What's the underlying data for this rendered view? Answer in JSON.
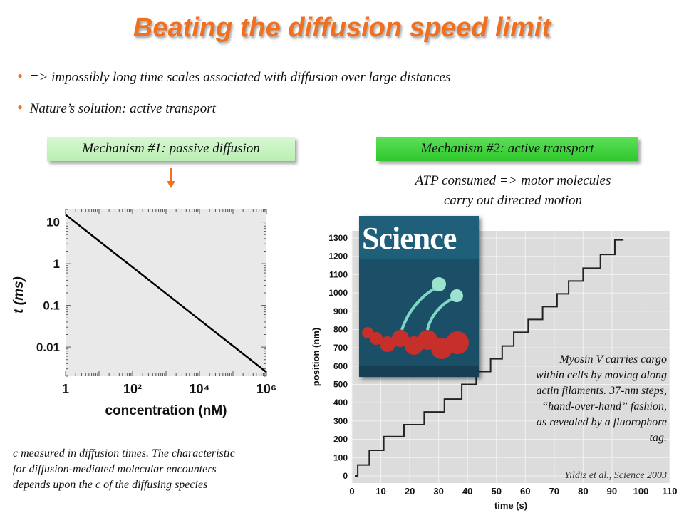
{
  "slide": {
    "title": "Beating the diffusion speed limit",
    "bullets": [
      "=> impossibly long time scales associated with diffusion over large distances",
      "Nature’s solution: active transport"
    ],
    "mechanism1": "Mechanism #1: passive diffusion",
    "mechanism2": "Mechanism #2: active transport",
    "atp_line1": "ATP consumed => motor molecules",
    "atp_line2": "carry out directed motion",
    "caption_lines": [
      "c measured in diffusion times. The characteristic",
      "for diffusion-mediated molecular encounters",
      "depends upon the c of the diffusing species"
    ],
    "myosin_lines": [
      "Myosin V carries cargo",
      "within cells by moving along",
      "actin filaments. 37-nm steps,",
      "“hand-over-hand” fashion,",
      "as revealed by a fluorophore",
      "tag."
    ],
    "reference": "Yildiz et al., Science 2003",
    "cover_title": "Science",
    "accent_color": "#f07020"
  },
  "chart_data": [
    {
      "type": "line",
      "title": "",
      "xlabel": "concentration (nM)",
      "ylabel": "t (ms)",
      "x_scale": "log",
      "y_scale": "log",
      "xlim": [
        1,
        1000000
      ],
      "ylim": [
        0.002,
        20
      ],
      "x_ticks": [
        1,
        100,
        10000,
        1000000
      ],
      "x_tick_labels": [
        "1",
        "10²",
        "10⁴",
        "10⁶"
      ],
      "y_ticks": [
        10,
        1,
        0.1,
        0.01
      ],
      "y_tick_labels": [
        "10",
        "1",
        "0.1",
        "0.01"
      ],
      "series": [
        {
          "x": [
            1,
            1000000
          ],
          "y": [
            15,
            0.0025
          ]
        }
      ],
      "grid": false
    },
    {
      "type": "line",
      "title": "",
      "xlabel": "time (s)",
      "ylabel": "position (nm)",
      "xlim": [
        0,
        110
      ],
      "ylim": [
        0,
        1300
      ],
      "x_ticks": [
        0,
        10,
        20,
        30,
        40,
        50,
        60,
        70,
        80,
        90,
        100,
        110
      ],
      "y_ticks": [
        0,
        100,
        200,
        300,
        400,
        500,
        600,
        700,
        800,
        900,
        1000,
        1100,
        1200,
        1300
      ],
      "series": [
        {
          "x": [
            1,
            2,
            2,
            6,
            6,
            11,
            11,
            18,
            18,
            25,
            25,
            32,
            32,
            38,
            38,
            43,
            43,
            48,
            48,
            52,
            52,
            56,
            56,
            61,
            61,
            66,
            66,
            71,
            71,
            75,
            75,
            80,
            80,
            86,
            86,
            91,
            91,
            94
          ],
          "y": [
            0,
            0,
            60,
            60,
            140,
            140,
            215,
            215,
            280,
            280,
            350,
            350,
            420,
            420,
            500,
            500,
            570,
            570,
            640,
            640,
            710,
            710,
            785,
            785,
            855,
            855,
            925,
            925,
            995,
            995,
            1065,
            1065,
            1135,
            1135,
            1210,
            1210,
            1290,
            1290
          ]
        }
      ],
      "grid": true
    }
  ]
}
